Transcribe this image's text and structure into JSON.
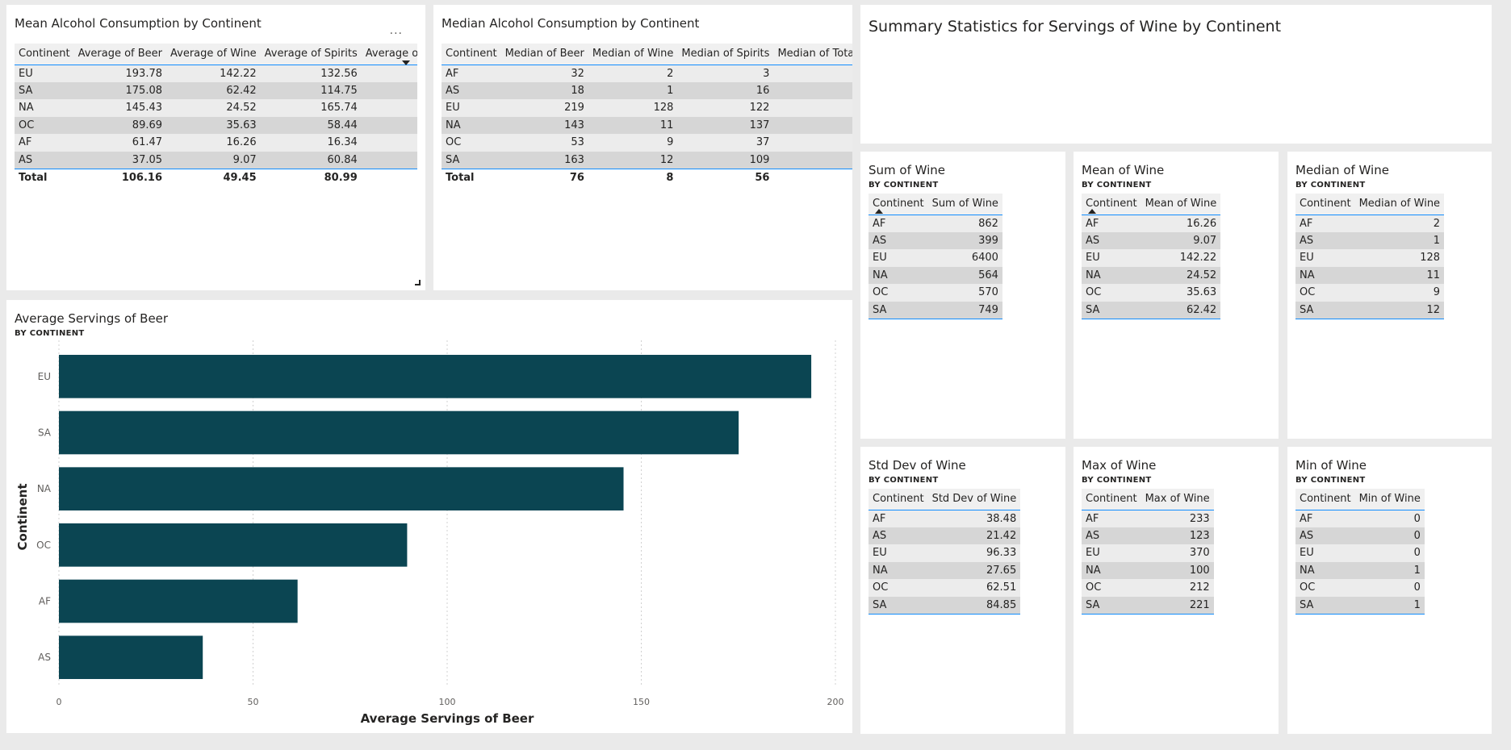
{
  "mean_table": {
    "title": "Mean Alcohol Consumption by Continent",
    "more_icon": "...",
    "headers": [
      "Continent",
      "Average of Beer",
      "Average of Wine",
      "Average of Spirits",
      "Average of Tota"
    ],
    "rows": [
      [
        "EU",
        "193.78",
        "142.22",
        "132.56"
      ],
      [
        "SA",
        "175.08",
        "62.42",
        "114.75"
      ],
      [
        "NA",
        "145.43",
        "24.52",
        "165.74"
      ],
      [
        "OC",
        "89.69",
        "35.63",
        "58.44"
      ],
      [
        "AF",
        "61.47",
        "16.26",
        "16.34"
      ],
      [
        "AS",
        "37.05",
        "9.07",
        "60.84"
      ]
    ],
    "total": [
      "Total",
      "106.16",
      "49.45",
      "80.99"
    ]
  },
  "median_table": {
    "title": "Median Alcohol Consumption by Continent",
    "headers": [
      "Continent",
      "Median of Beer",
      "Median of Wine",
      "Median of Spirits",
      "Median of Total I"
    ],
    "rows": [
      [
        "AF",
        "32",
        "2",
        "3"
      ],
      [
        "AS",
        "18",
        "1",
        "16"
      ],
      [
        "EU",
        "219",
        "128",
        "122"
      ],
      [
        "NA",
        "143",
        "11",
        "137"
      ],
      [
        "OC",
        "53",
        "9",
        "37"
      ],
      [
        "SA",
        "163",
        "12",
        "109"
      ]
    ],
    "total": [
      "Total",
      "76",
      "8",
      "56"
    ]
  },
  "summary": {
    "title": "Summary Statistics for Servings of Wine by Continent"
  },
  "wine_cards": [
    {
      "title": "Sum of Wine",
      "subtitle": "BY CONTINENT",
      "headers": [
        "Continent",
        "Sum of Wine"
      ],
      "rows": [
        [
          "AF",
          "862"
        ],
        [
          "AS",
          "399"
        ],
        [
          "EU",
          "6400"
        ],
        [
          "NA",
          "564"
        ],
        [
          "OC",
          "570"
        ],
        [
          "SA",
          "749"
        ]
      ]
    },
    {
      "title": "Mean of Wine",
      "subtitle": "BY CONTINENT",
      "headers": [
        "Continent",
        "Mean of Wine"
      ],
      "rows": [
        [
          "AF",
          "16.26"
        ],
        [
          "AS",
          "9.07"
        ],
        [
          "EU",
          "142.22"
        ],
        [
          "NA",
          "24.52"
        ],
        [
          "OC",
          "35.63"
        ],
        [
          "SA",
          "62.42"
        ]
      ]
    },
    {
      "title": "Median of Wine",
      "subtitle": "BY CONTINENT",
      "headers": [
        "Continent",
        "Median of Wine"
      ],
      "rows": [
        [
          "AF",
          "2"
        ],
        [
          "AS",
          "1"
        ],
        [
          "EU",
          "128"
        ],
        [
          "NA",
          "11"
        ],
        [
          "OC",
          "9"
        ],
        [
          "SA",
          "12"
        ]
      ]
    },
    {
      "title": "Std Dev of Wine",
      "subtitle": "BY CONTINENT",
      "headers": [
        "Continent",
        "Std Dev of Wine"
      ],
      "rows": [
        [
          "AF",
          "38.48"
        ],
        [
          "AS",
          "21.42"
        ],
        [
          "EU",
          "96.33"
        ],
        [
          "NA",
          "27.65"
        ],
        [
          "OC",
          "62.51"
        ],
        [
          "SA",
          "84.85"
        ]
      ]
    },
    {
      "title": "Max of Wine",
      "subtitle": "BY CONTINENT",
      "headers": [
        "Continent",
        "Max of Wine"
      ],
      "rows": [
        [
          "AF",
          "233"
        ],
        [
          "AS",
          "123"
        ],
        [
          "EU",
          "370"
        ],
        [
          "NA",
          "100"
        ],
        [
          "OC",
          "212"
        ],
        [
          "SA",
          "221"
        ]
      ]
    },
    {
      "title": "Min of Wine",
      "subtitle": "BY CONTINENT",
      "headers": [
        "Continent",
        "Min of Wine"
      ],
      "rows": [
        [
          "AF",
          "0"
        ],
        [
          "AS",
          "0"
        ],
        [
          "EU",
          "0"
        ],
        [
          "NA",
          "1"
        ],
        [
          "OC",
          "0"
        ],
        [
          "SA",
          "1"
        ]
      ]
    }
  ],
  "beer_chart": {
    "title": "Average Servings of Beer",
    "subtitle": "BY CONTINENT"
  },
  "chart_data": {
    "type": "bar",
    "orientation": "horizontal",
    "categories": [
      "EU",
      "SA",
      "NA",
      "OC",
      "AF",
      "AS"
    ],
    "values": [
      193.78,
      175.08,
      145.43,
      89.69,
      61.47,
      37.05
    ],
    "xlabel": "Average Servings of Beer",
    "ylabel": "Continent",
    "xlim": [
      0,
      200
    ],
    "xticks": [
      0,
      50,
      100,
      150,
      200
    ],
    "grid": true,
    "bar_color": "#0b4552"
  },
  "colors": {
    "accent": "#118dff",
    "bar": "#0b4552",
    "background": "#eaeaea"
  }
}
